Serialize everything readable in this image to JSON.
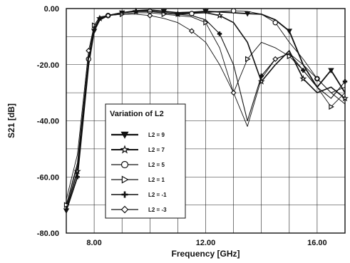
{
  "chart_data": {
    "type": "line",
    "xlabel": "Frequency [GHz]",
    "ylabel": "S21 [dB]",
    "xlim": [
      7.0,
      17.0
    ],
    "ylim": [
      -80.0,
      0.0
    ],
    "x_ticks": [
      8.0,
      12.0,
      16.0
    ],
    "x_tick_labels": [
      "8.00",
      "12.00",
      "16.00"
    ],
    "y_ticks": [
      0.0,
      -20.0,
      -40.0,
      -60.0,
      -80.0
    ],
    "y_tick_labels": [
      "0.00",
      "-20.00",
      "-40.00",
      "-60.00",
      "-80.00"
    ],
    "grid": true,
    "legend": {
      "title": "Variation of L2",
      "placement": "lower-left"
    },
    "series": [
      {
        "name": "L2 = 9",
        "marker": "triangle-down",
        "x": [
          7.0,
          7.4,
          7.8,
          8.0,
          8.2,
          8.5,
          9.0,
          9.5,
          10.0,
          10.5,
          11.0,
          11.5,
          12.0,
          12.5,
          13.0,
          13.5,
          14.0,
          14.5,
          15.0,
          15.5,
          16.0,
          16.5,
          17.0
        ],
        "y": [
          -72,
          -60,
          -20,
          -8,
          -4,
          -2.5,
          -1.5,
          -0.8,
          -0.5,
          -1.0,
          -1.5,
          -1.3,
          -1.0,
          -1.2,
          -1.5,
          -1.8,
          -2.0,
          -4.0,
          -8.0,
          -20.0,
          -28.0,
          -22.0,
          -30.0
        ]
      },
      {
        "name": "L2 = 7",
        "marker": "star",
        "x": [
          7.0,
          7.4,
          7.8,
          8.0,
          8.2,
          8.5,
          9.0,
          9.5,
          10.0,
          10.5,
          11.0,
          11.5,
          12.0,
          12.5,
          13.0,
          13.5,
          14.0,
          14.5,
          15.0,
          15.5,
          16.0,
          16.5,
          17.0
        ],
        "y": [
          -71,
          -58,
          -19,
          -7,
          -3.5,
          -2.5,
          -1.5,
          -1.0,
          -1.0,
          -1.5,
          -2.0,
          -1.5,
          -1.5,
          -2.5,
          -5.0,
          -12.0,
          -26.0,
          -20.0,
          -15.0,
          -25.0,
          -30.0,
          -28.0,
          -32.0
        ]
      },
      {
        "name": "L2 = 5",
        "marker": "circle",
        "x": [
          7.0,
          7.4,
          7.8,
          8.0,
          8.2,
          8.5,
          9.0,
          9.5,
          10.0,
          10.5,
          11.0,
          11.5,
          12.0,
          12.5,
          13.0,
          13.5,
          14.0,
          14.5,
          15.0,
          15.5,
          16.0,
          16.5,
          17.0
        ],
        "y": [
          -70,
          -56,
          -18,
          -7,
          -3.5,
          -2.5,
          -1.5,
          -1.0,
          -1.0,
          -1.5,
          -2.0,
          -1.8,
          -1.5,
          -1.0,
          -0.8,
          -1.0,
          -2.0,
          -5.0,
          -12.0,
          -18.0,
          -25.0,
          -30.0,
          -28.0
        ]
      },
      {
        "name": "L2 = 1",
        "marker": "triangle-right",
        "x": [
          7.0,
          7.4,
          7.8,
          8.0,
          8.2,
          8.5,
          9.0,
          9.5,
          10.0,
          10.5,
          11.0,
          11.5,
          12.0,
          12.5,
          13.0,
          13.5,
          14.0,
          14.5,
          15.0,
          15.5,
          16.0,
          16.5,
          17.0
        ],
        "y": [
          -70,
          -55,
          -17,
          -6,
          -3,
          -2.5,
          -2.0,
          -1.5,
          -1.5,
          -2.0,
          -2.5,
          -3.0,
          -5.0,
          -14.0,
          -30.0,
          -18.0,
          -12.0,
          -14.0,
          -17.0,
          -22.0,
          -28.0,
          -35.0,
          -30.0
        ]
      },
      {
        "name": "L2 = -1",
        "marker": "plus",
        "x": [
          7.0,
          7.4,
          7.8,
          8.0,
          8.2,
          8.5,
          9.0,
          9.5,
          10.0,
          10.5,
          11.0,
          11.5,
          12.0,
          12.5,
          13.0,
          13.5,
          14.0,
          14.5,
          15.0,
          15.5,
          16.0,
          16.5,
          17.0
        ],
        "y": [
          -72,
          -60,
          -18,
          -7,
          -3.5,
          -2.5,
          -1.5,
          -1.0,
          -1.0,
          -1.5,
          -2.0,
          -2.5,
          -4.0,
          -9.0,
          -20.0,
          -40.0,
          -24.0,
          -18.0,
          -16.0,
          -22.0,
          -28.0,
          -32.0,
          -26.0
        ]
      },
      {
        "name": "L2 = -3",
        "marker": "diamond",
        "x": [
          7.0,
          7.4,
          7.8,
          8.0,
          8.2,
          8.5,
          9.0,
          9.5,
          10.0,
          10.5,
          11.0,
          11.5,
          12.0,
          12.5,
          13.0,
          13.5,
          14.0,
          14.5,
          15.0,
          15.5,
          16.0,
          16.5,
          17.0
        ],
        "y": [
          -68,
          -52,
          -15,
          -6,
          -3,
          -2.5,
          -2.0,
          -2.0,
          -2.5,
          -3.5,
          -5.0,
          -8.0,
          -12.0,
          -20.0,
          -30.0,
          -42.0,
          -25.0,
          -18.0,
          -16.0,
          -20.0,
          -25.0,
          -30.0,
          -34.0
        ]
      }
    ]
  }
}
